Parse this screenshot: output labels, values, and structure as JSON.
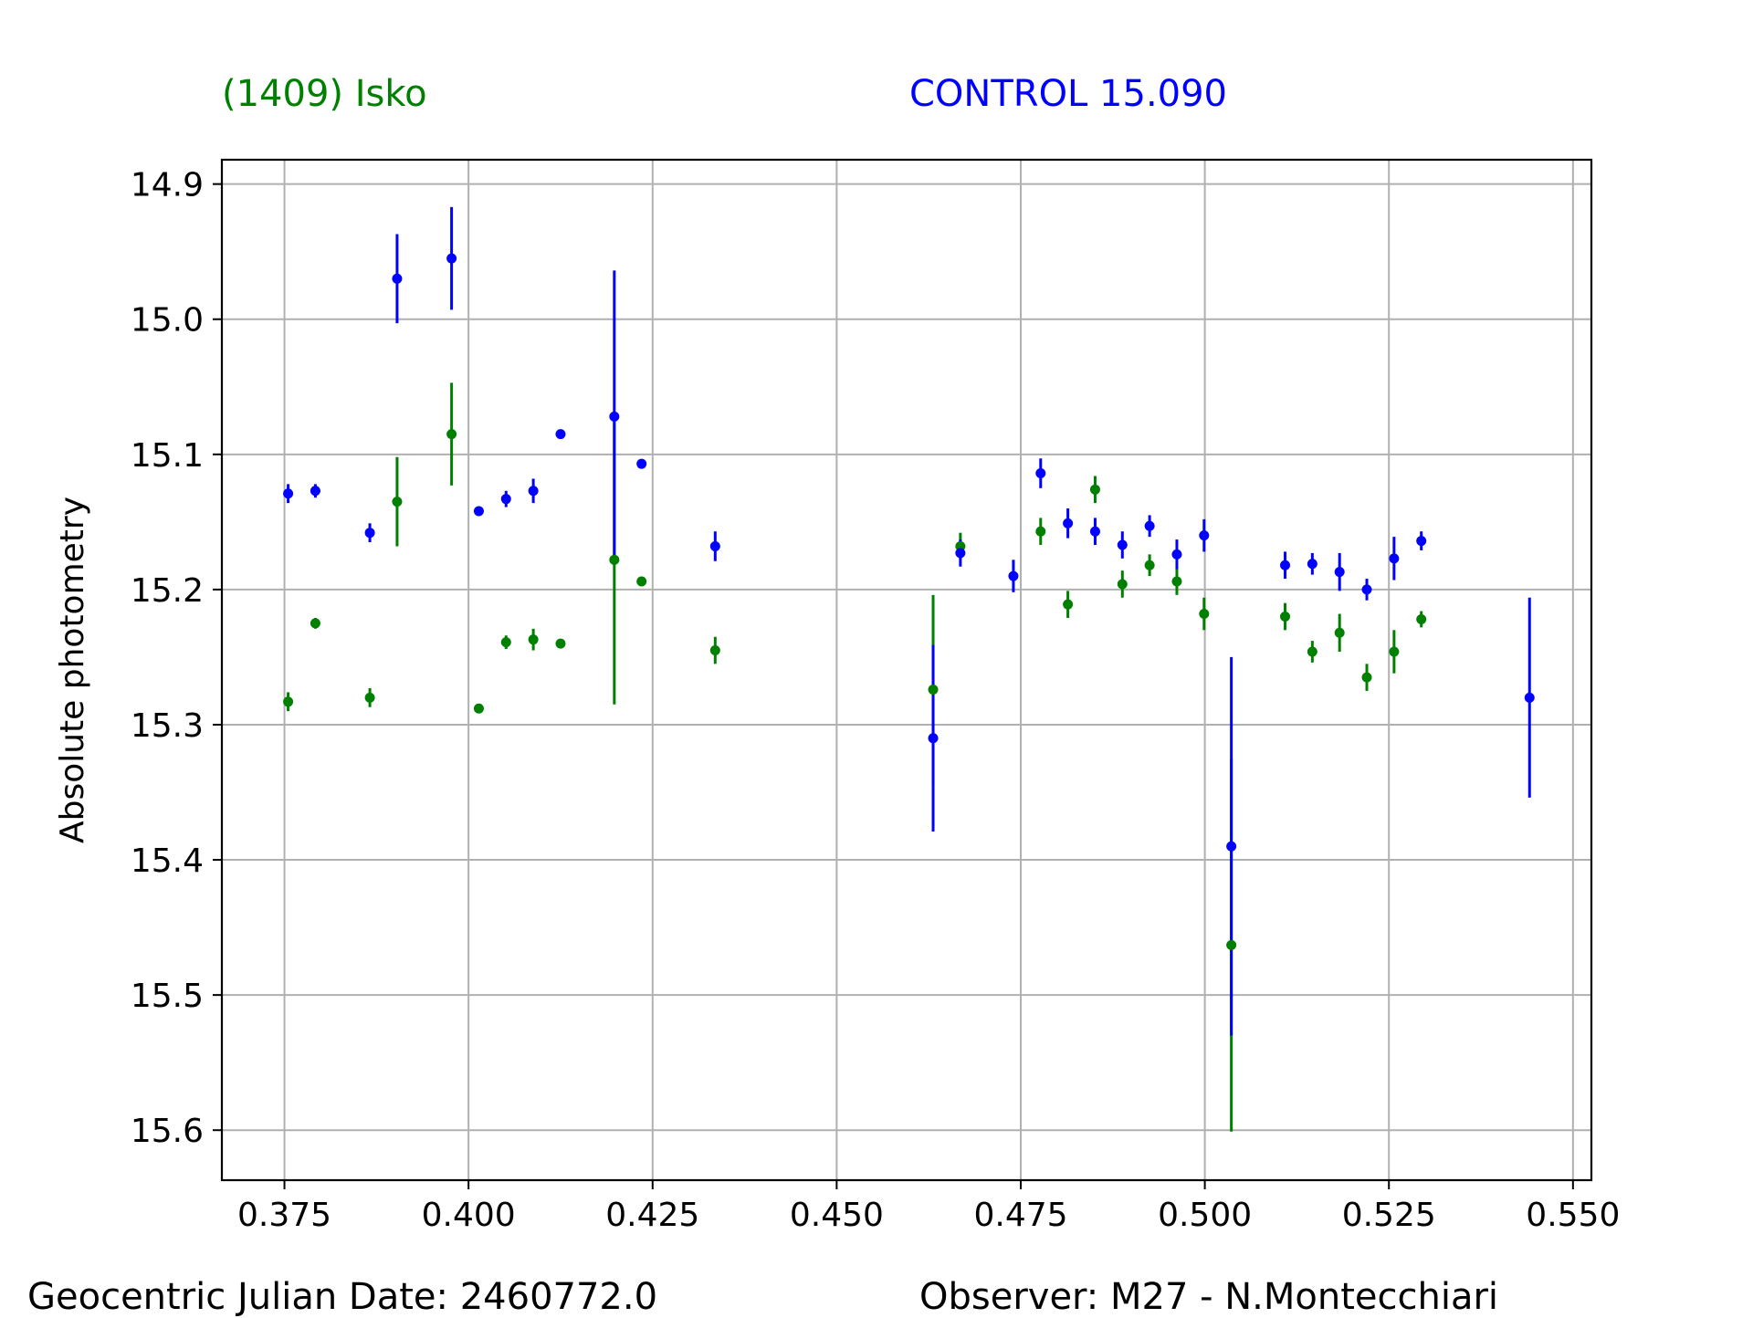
{
  "header": {
    "target_label": "(1409) Isko",
    "control_label": "CONTROL 15.090"
  },
  "footer": {
    "date_label": "Geocentric Julian Date: 2460772.0",
    "observer_label": "Observer: M27 - N.Montecchiari"
  },
  "chart_data": {
    "type": "scatter",
    "title": "",
    "xlabel": "",
    "ylabel": "Absolute photometry",
    "xlim": [
      0.3665,
      0.5525
    ],
    "ylim": [
      15.637,
      14.882
    ],
    "y_inverted": true,
    "grid": true,
    "x_ticks": [
      0.375,
      0.4,
      0.425,
      0.45,
      0.475,
      0.5,
      0.525,
      0.55
    ],
    "x_tick_labels": [
      "0.375",
      "0.400",
      "0.425",
      "0.450",
      "0.475",
      "0.500",
      "0.525",
      "0.550"
    ],
    "y_ticks": [
      14.9,
      15.0,
      15.1,
      15.2,
      15.3,
      15.4,
      15.5,
      15.6
    ],
    "y_tick_labels": [
      "14.9",
      "15.0",
      "15.1",
      "15.2",
      "15.3",
      "15.4",
      "15.5",
      "15.6"
    ],
    "series": [
      {
        "name": "(1409) Isko",
        "color": "#008000",
        "points": [
          {
            "x": 0.3755,
            "y": 15.283,
            "err": 0.007
          },
          {
            "x": 0.3792,
            "y": 15.225,
            "err": 0.004
          },
          {
            "x": 0.3866,
            "y": 15.28,
            "err": 0.007
          },
          {
            "x": 0.3903,
            "y": 15.135,
            "err": 0.033
          },
          {
            "x": 0.3977,
            "y": 15.085,
            "err": 0.038
          },
          {
            "x": 0.4014,
            "y": 15.288,
            "err": 0.003
          },
          {
            "x": 0.4051,
            "y": 15.239,
            "err": 0.005
          },
          {
            "x": 0.4088,
            "y": 15.237,
            "err": 0.008
          },
          {
            "x": 0.4125,
            "y": 15.24,
            "err": 0.003
          },
          {
            "x": 0.4198,
            "y": 15.178,
            "err": 0.107
          },
          {
            "x": 0.4235,
            "y": 15.194,
            "err": 0.003
          },
          {
            "x": 0.4335,
            "y": 15.245,
            "err": 0.01
          },
          {
            "x": 0.4631,
            "y": 15.274,
            "err": 0.07
          },
          {
            "x": 0.4668,
            "y": 15.168,
            "err": 0.01
          },
          {
            "x": 0.4777,
            "y": 15.157,
            "err": 0.01
          },
          {
            "x": 0.4814,
            "y": 15.211,
            "err": 0.01
          },
          {
            "x": 0.4851,
            "y": 15.126,
            "err": 0.01
          },
          {
            "x": 0.4888,
            "y": 15.196,
            "err": 0.01
          },
          {
            "x": 0.4925,
            "y": 15.182,
            "err": 0.008
          },
          {
            "x": 0.4962,
            "y": 15.194,
            "err": 0.01
          },
          {
            "x": 0.4999,
            "y": 15.218,
            "err": 0.012
          },
          {
            "x": 0.5036,
            "y": 15.463,
            "err": 0.138
          },
          {
            "x": 0.5109,
            "y": 15.22,
            "err": 0.01
          },
          {
            "x": 0.5146,
            "y": 15.246,
            "err": 0.008
          },
          {
            "x": 0.5183,
            "y": 15.232,
            "err": 0.014
          },
          {
            "x": 0.522,
            "y": 15.265,
            "err": 0.01
          },
          {
            "x": 0.5257,
            "y": 15.246,
            "err": 0.016
          },
          {
            "x": 0.5294,
            "y": 15.222,
            "err": 0.006
          }
        ]
      },
      {
        "name": "CONTROL 15.090",
        "color": "#0000ff",
        "points": [
          {
            "x": 0.3755,
            "y": 15.129,
            "err": 0.007
          },
          {
            "x": 0.3792,
            "y": 15.127,
            "err": 0.005
          },
          {
            "x": 0.3866,
            "y": 15.158,
            "err": 0.007
          },
          {
            "x": 0.3903,
            "y": 14.97,
            "err": 0.033
          },
          {
            "x": 0.3977,
            "y": 14.955,
            "err": 0.038
          },
          {
            "x": 0.4014,
            "y": 15.142,
            "err": 0.003
          },
          {
            "x": 0.4051,
            "y": 15.133,
            "err": 0.006
          },
          {
            "x": 0.4088,
            "y": 15.127,
            "err": 0.009
          },
          {
            "x": 0.4125,
            "y": 15.085,
            "err": 0.003
          },
          {
            "x": 0.4198,
            "y": 15.072,
            "err": 0.108
          },
          {
            "x": 0.4235,
            "y": 15.107,
            "err": 0.003
          },
          {
            "x": 0.4335,
            "y": 15.168,
            "err": 0.011
          },
          {
            "x": 0.4631,
            "y": 15.31,
            "err": 0.069
          },
          {
            "x": 0.4668,
            "y": 15.173,
            "err": 0.01
          },
          {
            "x": 0.474,
            "y": 15.19,
            "err": 0.012
          },
          {
            "x": 0.4777,
            "y": 15.114,
            "err": 0.011
          },
          {
            "x": 0.4814,
            "y": 15.151,
            "err": 0.011
          },
          {
            "x": 0.4851,
            "y": 15.157,
            "err": 0.01
          },
          {
            "x": 0.4888,
            "y": 15.167,
            "err": 0.01
          },
          {
            "x": 0.4925,
            "y": 15.153,
            "err": 0.008
          },
          {
            "x": 0.4962,
            "y": 15.174,
            "err": 0.011
          },
          {
            "x": 0.4999,
            "y": 15.16,
            "err": 0.012
          },
          {
            "x": 0.5036,
            "y": 15.39,
            "err": 0.14
          },
          {
            "x": 0.5109,
            "y": 15.182,
            "err": 0.01
          },
          {
            "x": 0.5146,
            "y": 15.181,
            "err": 0.008
          },
          {
            "x": 0.5183,
            "y": 15.187,
            "err": 0.014
          },
          {
            "x": 0.522,
            "y": 15.2,
            "err": 0.008
          },
          {
            "x": 0.5257,
            "y": 15.177,
            "err": 0.016
          },
          {
            "x": 0.5294,
            "y": 15.164,
            "err": 0.007
          },
          {
            "x": 0.5441,
            "y": 15.28,
            "err": 0.074
          }
        ]
      }
    ]
  }
}
